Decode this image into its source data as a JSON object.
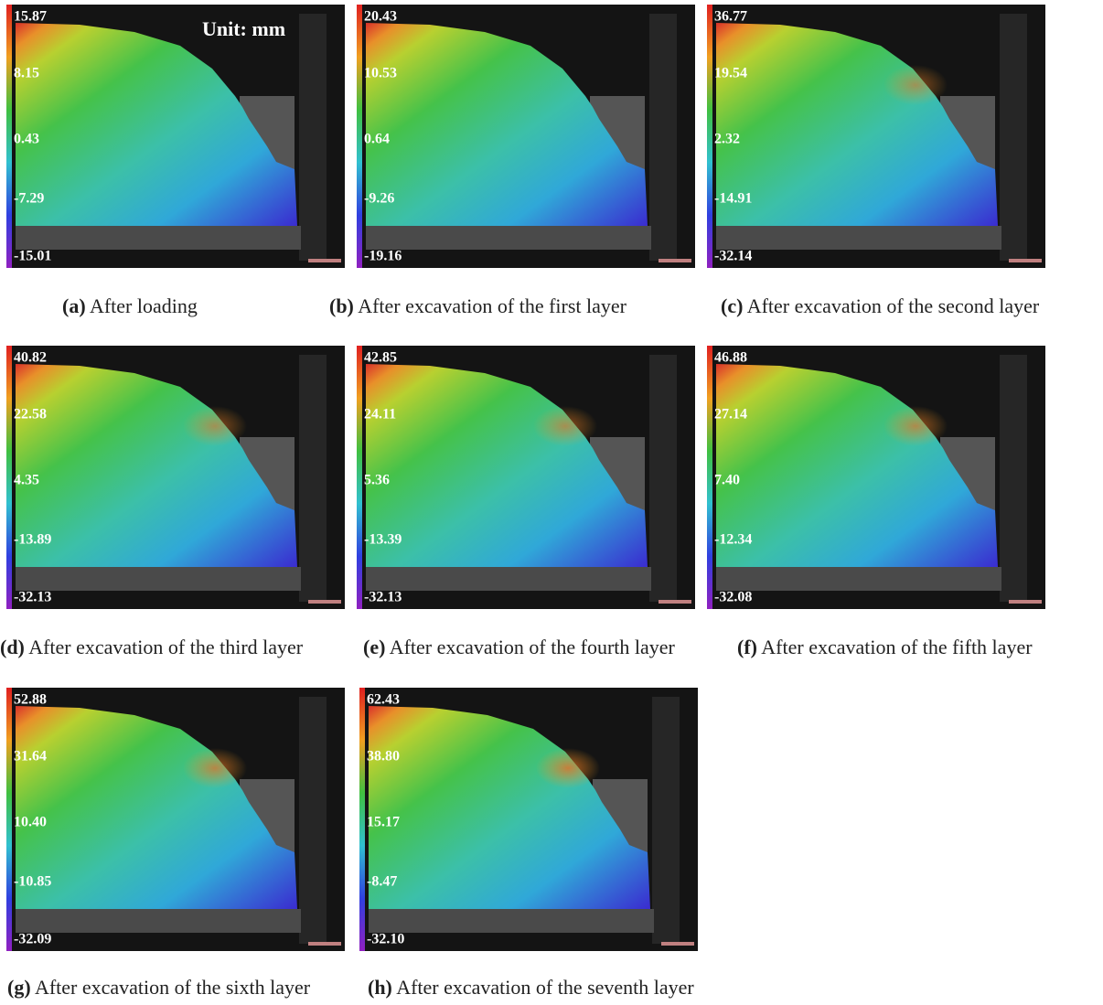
{
  "unit_label": "Unit: mm",
  "panels": [
    {
      "letter": "(a)",
      "caption": "After loading",
      "scale_labels": [
        "15.87",
        "8.15",
        "0.43",
        "-7.29",
        "-15.01"
      ]
    },
    {
      "letter": "(b)",
      "caption": "After excavation of the first layer",
      "scale_labels": [
        "20.43",
        "10.53",
        "0.64",
        "-9.26",
        "-19.16"
      ]
    },
    {
      "letter": "(c)",
      "caption": "After excavation of the second layer",
      "scale_labels": [
        "36.77",
        "19.54",
        "2.32",
        "-14.91",
        "-32.14"
      ]
    },
    {
      "letter": "(d)",
      "caption": "After excavation of the third layer",
      "scale_labels": [
        "40.82",
        "22.58",
        "4.35",
        "-13.89",
        "-32.13"
      ]
    },
    {
      "letter": "(e)",
      "caption": "After excavation of the fourth layer",
      "scale_labels": [
        "42.85",
        "24.11",
        "5.36",
        "-13.39",
        "-32.13"
      ]
    },
    {
      "letter": "(f)",
      "caption": "After excavation of the fifth layer",
      "scale_labels": [
        "46.88",
        "27.14",
        "7.40",
        "-12.34",
        "-32.08"
      ]
    },
    {
      "letter": "(g)",
      "caption": "After excavation of the sixth layer",
      "scale_labels": [
        "52.88",
        "31.64",
        "10.40",
        "-10.85",
        "-32.09"
      ]
    },
    {
      "letter": "(h)",
      "caption": "After excavation of the seventh layer",
      "scale_labels": [
        "62.43",
        "38.80",
        "15.17",
        "-8.47",
        "-32.10"
      ]
    }
  ]
}
